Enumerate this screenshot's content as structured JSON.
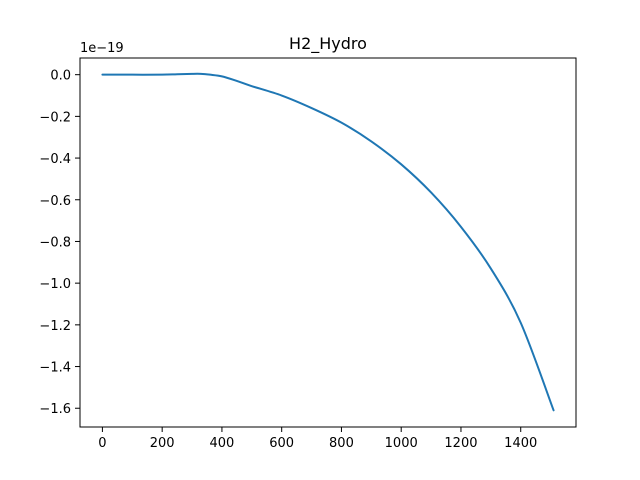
{
  "chart_data": {
    "type": "line",
    "title": "H2_Hydro",
    "xlabel": "",
    "ylabel": "",
    "offset_text": "1e−19",
    "xlim": [
      -75,
      1585
    ],
    "ylim": [
      -1.69,
      0.08
    ],
    "xticks": [
      0,
      200,
      400,
      600,
      800,
      1000,
      1200,
      1400
    ],
    "xtick_labels": [
      "0",
      "200",
      "400",
      "600",
      "800",
      "1000",
      "1200",
      "1400"
    ],
    "yticks": [
      0.0,
      -0.2,
      -0.4,
      -0.6,
      -0.8,
      -1.0,
      -1.2,
      -1.4,
      -1.6
    ],
    "ytick_labels": [
      "0.0",
      "−0.2",
      "−0.4",
      "−0.6",
      "−0.8",
      "−1.0",
      "−1.2",
      "−1.4",
      "−1.6"
    ],
    "grid": false,
    "series": [
      {
        "color": "#1f77b4",
        "x": [
          0,
          100,
          200,
          250,
          300,
          330,
          360,
          400,
          450,
          500,
          600,
          700,
          800,
          900,
          1000,
          1100,
          1200,
          1300,
          1400,
          1510
        ],
        "y": [
          0.0,
          0.0,
          0.0,
          0.002,
          0.004,
          0.004,
          0.0,
          -0.008,
          -0.03,
          -0.055,
          -0.1,
          -0.16,
          -0.23,
          -0.32,
          -0.43,
          -0.565,
          -0.73,
          -0.93,
          -1.19,
          -1.61
        ]
      }
    ]
  }
}
